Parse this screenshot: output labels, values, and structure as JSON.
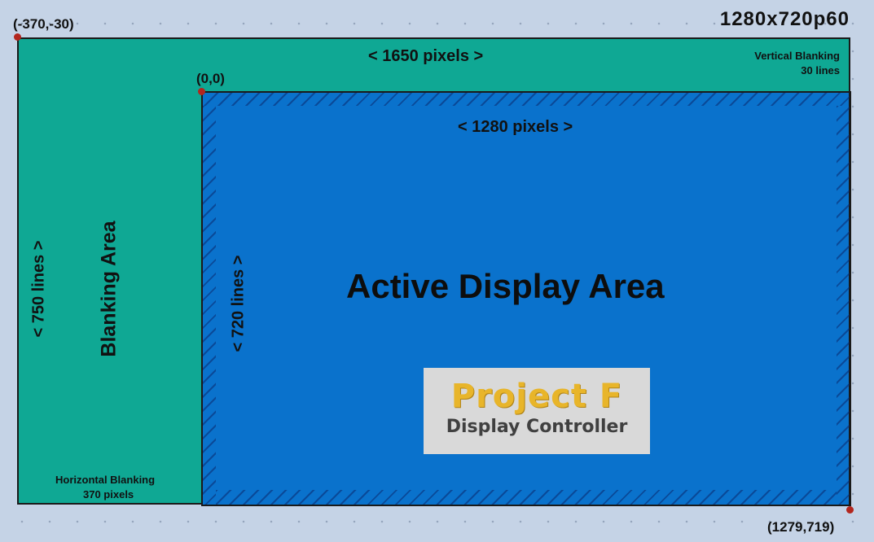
{
  "resolution_label": "1280x720p60",
  "corners": {
    "top_left": "(-370,-30)",
    "origin": "(0,0)",
    "bottom_right": "(1279,719)"
  },
  "total_width_label": "< 1650 pixels >",
  "active_width_label": "< 1280 pixels >",
  "vertical_blanking": {
    "title": "Vertical Blanking",
    "value": "30 lines"
  },
  "horizontal_blanking": {
    "title": "Horizontal Blanking",
    "value": "370 pixels"
  },
  "total_height_label": "< 750 lines >",
  "active_height_label": "< 720 lines >",
  "blanking_area_label": "Blanking Area",
  "active_area_label": "Active Display Area",
  "logo": {
    "title": "Project F",
    "subtitle": "Display Controller"
  },
  "colors": {
    "background": "#c5d3e6",
    "blanking": "#0fa894",
    "active": "#0a72cc",
    "corner_point": "#b3261e",
    "logo_title": "#e8b52a"
  }
}
